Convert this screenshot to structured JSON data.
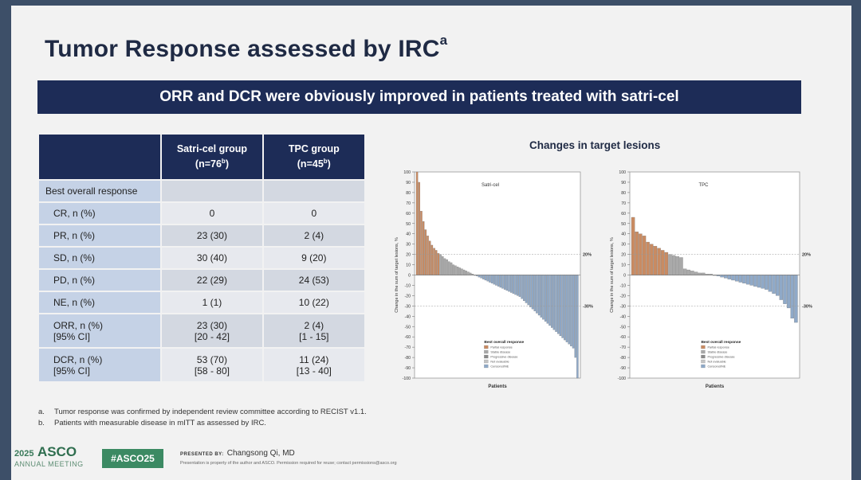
{
  "slide": {
    "title": "Tumor Response assessed by IRC",
    "title_sup": "a",
    "banner": "ORR and DCR were obviously improved in patients treated with satri-cel"
  },
  "table": {
    "header": {
      "col1_line1": "Satri-cel group",
      "col1_line2_pre": "(n=76",
      "col1_sup": "b",
      "col1_line2_post": ")",
      "col2_line1": "TPC group",
      "col2_line2_pre": "(n=45",
      "col2_sup": "b",
      "col2_line2_post": ")"
    },
    "section_label": "Best overall response",
    "rows": [
      {
        "label": "CR, n (%)",
        "satri": "0",
        "tpc": "0"
      },
      {
        "label": "PR, n (%)",
        "satri": "23 (30)",
        "tpc": "2 (4)"
      },
      {
        "label": "SD, n (%)",
        "satri": "30 (40)",
        "tpc": "9 (20)"
      },
      {
        "label": "PD, n (%)",
        "satri": "22 (29)",
        "tpc": "24 (53)"
      },
      {
        "label": "NE, n (%)",
        "satri": "1 (1)",
        "tpc": "10 (22)"
      }
    ],
    "tall_rows": [
      {
        "label1": "ORR, n (%)",
        "label2": "[95% CI]",
        "satri1": "23 (30)",
        "satri2": "[20 - 42]",
        "tpc1": "2 (4)",
        "tpc2": "[1 - 15]"
      },
      {
        "label1": "DCR, n (%)",
        "label2": "[95% CI]",
        "satri1": "53 (70)",
        "satri2": "[58 - 80]",
        "tpc1": "11 (24)",
        "tpc2": "[13 - 40]"
      }
    ]
  },
  "footnotes": {
    "a_key": "a.",
    "a_text": "Tumor response was confirmed by independent review committee according to RECIST v1.1.",
    "b_key": "b.",
    "b_text": "Patients with measurable disease in mITT as assessed by IRC."
  },
  "branding": {
    "year": "2025",
    "org": "ASCO",
    "meeting": "ANNUAL MEETING",
    "hashtag": "#ASCO25",
    "presented_by_label": "PRESENTED BY:",
    "presenter": "Changsong Qi, MD",
    "disclaimer": "Presentation is property of the author and ASCO. Permission required for reuse; contact permissions@asco.org"
  },
  "chart_section_title": "Changes in target lesions",
  "colors": {
    "navy": "#1d2c57",
    "increase": "#c98b62",
    "decrease": "#8fa9c8",
    "asco_green": "#3c8a63"
  },
  "chart_data": [
    {
      "type": "bar",
      "panel_label": "Satri-cel",
      "title": "Changes in target lesions",
      "xlabel": "Patients",
      "ylabel": "Change in the sum of target lesions, %",
      "ylim": [
        -100,
        100
      ],
      "yticks": [
        100,
        90,
        80,
        70,
        60,
        50,
        40,
        30,
        20,
        10,
        0,
        -10,
        -20,
        -30,
        -40,
        -50,
        -60,
        -70,
        -80,
        -90,
        -100
      ],
      "reference_lines": [
        20,
        -30
      ],
      "reference_labels": [
        "20%",
        "-30%"
      ],
      "legend_title": "Best overall response",
      "legend_items": [
        "Partial response",
        "Stable disease",
        "Progressive disease",
        "Not evaluable",
        "Censored/NE"
      ],
      "values": [
        100,
        90,
        62,
        52,
        44,
        38,
        33,
        29,
        26,
        24,
        21,
        20,
        18,
        16,
        15,
        13,
        12,
        10,
        9,
        8,
        7,
        6,
        5,
        4,
        3,
        2,
        1,
        0,
        -1,
        -2,
        -3,
        -4,
        -5,
        -6,
        -7,
        -8,
        -9,
        -10,
        -11,
        -12,
        -13,
        -14,
        -15,
        -16,
        -17,
        -18,
        -19,
        -20,
        -21,
        -23,
        -25,
        -27,
        -29,
        -31,
        -33,
        -35,
        -37,
        -39,
        -41,
        -43,
        -45,
        -47,
        -49,
        -51,
        -53,
        -55,
        -57,
        -59,
        -61,
        -63,
        -65,
        -67,
        -69,
        -71,
        -80,
        -100
      ]
    },
    {
      "type": "bar",
      "panel_label": "TPC",
      "xlabel": "Patients",
      "ylabel": "Change in the sum of target lesions, %",
      "ylim": [
        -100,
        100
      ],
      "yticks": [
        100,
        90,
        80,
        70,
        60,
        50,
        40,
        30,
        20,
        10,
        0,
        -10,
        -20,
        -30,
        -40,
        -50,
        -60,
        -70,
        -80,
        -90,
        -100
      ],
      "reference_lines": [
        20,
        -30
      ],
      "reference_labels": [
        "20%",
        "-30%"
      ],
      "legend_title": "Best overall response",
      "legend_items": [
        "Partial response",
        "Stable disease",
        "Progressive disease",
        "Not evaluable",
        "Censored/NE"
      ],
      "values": [
        56,
        42,
        40,
        38,
        32,
        30,
        28,
        26,
        24,
        22,
        20,
        19,
        18,
        17,
        6,
        5,
        4,
        3,
        2,
        2,
        1,
        1,
        0,
        -1,
        -2,
        -3,
        -4,
        -5,
        -6,
        -7,
        -8,
        -9,
        -10,
        -11,
        -12,
        -13,
        -14,
        -16,
        -18,
        -20,
        -24,
        -28,
        -32,
        -42,
        -46
      ]
    }
  ]
}
